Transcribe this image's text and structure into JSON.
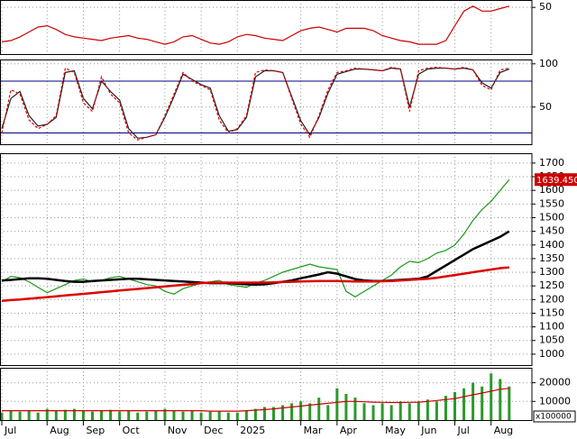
{
  "chart_data": [
    {
      "type": "line",
      "ylim": [
        12,
        56
      ],
      "yticks": [
        50
      ],
      "series": [
        {
          "color": "#cc0000",
          "values": [
            22,
            23,
            26,
            30,
            34,
            35,
            32,
            28,
            26,
            25,
            24,
            23,
            25,
            26,
            27,
            25,
            24,
            22,
            20,
            22,
            26,
            27,
            24,
            21,
            20,
            22,
            26,
            28,
            27,
            25,
            24,
            23,
            27,
            31,
            33,
            34,
            32,
            30,
            33,
            33,
            33,
            31,
            27,
            25,
            23,
            22,
            20,
            20,
            20,
            23,
            35,
            47,
            51,
            47,
            47,
            49,
            51
          ]
        }
      ]
    },
    {
      "type": "line",
      "ylim": [
        7,
        105
      ],
      "yticks": [
        50,
        100
      ],
      "levels": [
        20,
        80
      ],
      "level_color": "#000080",
      "series": [
        {
          "color": "#222222",
          "values": [
            25,
            60,
            68,
            40,
            28,
            30,
            38,
            90,
            92,
            60,
            48,
            80,
            68,
            58,
            25,
            14,
            15,
            18,
            38,
            62,
            88,
            82,
            76,
            72,
            40,
            22,
            24,
            38,
            85,
            92,
            92,
            90,
            62,
            34,
            18,
            38,
            66,
            88,
            91,
            94,
            94,
            93,
            92,
            95,
            94,
            50,
            88,
            94,
            95,
            95,
            94,
            95,
            93,
            78,
            72,
            90,
            94
          ]
        },
        {
          "color": "#dd0000",
          "dashed": true,
          "values": [
            20,
            70,
            65,
            35,
            25,
            30,
            40,
            95,
            90,
            55,
            45,
            85,
            65,
            55,
            20,
            12,
            15,
            18,
            40,
            65,
            90,
            80,
            75,
            70,
            35,
            20,
            25,
            40,
            90,
            93,
            92,
            90,
            60,
            30,
            15,
            40,
            70,
            90,
            92,
            95,
            94,
            93,
            92,
            96,
            94,
            45,
            92,
            95,
            96,
            95,
            94,
            96,
            93,
            75,
            70,
            93,
            95
          ]
        }
      ]
    },
    {
      "type": "line",
      "ylim": [
        960,
        1736
      ],
      "yticks": [
        1000,
        1050,
        1100,
        1150,
        1200,
        1250,
        1300,
        1350,
        1400,
        1450,
        1500,
        1550,
        1600,
        1650,
        1700
      ],
      "last_price": {
        "value": 1639.45,
        "label": "1639.450",
        "color": "#cc0000"
      },
      "series": [
        {
          "color": "#1a9a1a",
          "values": [
            1265,
            1285,
            1280,
            1265,
            1245,
            1225,
            1240,
            1255,
            1270,
            1275,
            1265,
            1270,
            1280,
            1285,
            1275,
            1265,
            1255,
            1250,
            1230,
            1220,
            1240,
            1250,
            1260,
            1265,
            1270,
            1255,
            1250,
            1245,
            1260,
            1270,
            1285,
            1300,
            1310,
            1320,
            1330,
            1320,
            1315,
            1310,
            1230,
            1210,
            1230,
            1250,
            1270,
            1290,
            1320,
            1340,
            1335,
            1350,
            1370,
            1380,
            1400,
            1440,
            1490,
            1530,
            1560,
            1600,
            1639.45
          ]
        },
        {
          "color": "#000000",
          "width": 2.5,
          "values": [
            1270,
            1272,
            1275,
            1278,
            1278,
            1276,
            1272,
            1268,
            1265,
            1265,
            1268,
            1270,
            1272,
            1274,
            1276,
            1276,
            1274,
            1272,
            1270,
            1268,
            1266,
            1264,
            1262,
            1260,
            1260,
            1260,
            1258,
            1256,
            1255,
            1256,
            1260,
            1265,
            1270,
            1278,
            1285,
            1292,
            1300,
            1295,
            1285,
            1275,
            1270,
            1268,
            1268,
            1270,
            1272,
            1274,
            1276,
            1285,
            1305,
            1325,
            1345,
            1365,
            1385,
            1400,
            1415,
            1430,
            1450
          ]
        },
        {
          "color": "#dd0000",
          "width": 2.5,
          "values": [
            1195,
            1198,
            1200,
            1203,
            1206,
            1209,
            1212,
            1215,
            1218,
            1221,
            1224,
            1227,
            1230,
            1233,
            1236,
            1239,
            1242,
            1245,
            1248,
            1251,
            1254,
            1257,
            1260,
            1262,
            1262,
            1262,
            1262,
            1262,
            1262,
            1262,
            1263,
            1264,
            1265,
            1266,
            1267,
            1268,
            1268,
            1268,
            1267,
            1266,
            1266,
            1266,
            1267,
            1268,
            1270,
            1272,
            1274,
            1276,
            1280,
            1285,
            1290,
            1295,
            1300,
            1305,
            1310,
            1315,
            1318
          ]
        }
      ]
    },
    {
      "type": "bar",
      "ylim": [
        0,
        28000
      ],
      "yticks": [
        10000,
        20000
      ],
      "unit_label": "x100000",
      "xticks": [
        {
          "value": 0,
          "label": "Jul"
        },
        {
          "value": 5,
          "label": "Aug"
        },
        {
          "value": 9,
          "label": "Sep"
        },
        {
          "value": 13,
          "label": "Oct"
        },
        {
          "value": 18,
          "label": "Nov"
        },
        {
          "value": 22,
          "label": "Dec"
        },
        {
          "value": 26,
          "label": "2025"
        },
        {
          "value": 33,
          "label": "Mar"
        },
        {
          "value": 37,
          "label": "Apr"
        },
        {
          "value": 42,
          "label": "May"
        },
        {
          "value": 46,
          "label": "Jun"
        },
        {
          "value": 50,
          "label": "Jul"
        },
        {
          "value": 54,
          "label": "Aug"
        }
      ],
      "series": [
        {
          "color": "#2a9a2a",
          "values": [
            4000,
            5000,
            4500,
            5000,
            4000,
            6000,
            5000,
            5500,
            6000,
            5000,
            4500,
            5000,
            5500,
            4500,
            5000,
            4000,
            4500,
            5000,
            6000,
            5000,
            4500,
            5000,
            4000,
            4500,
            5000,
            4000,
            4000,
            5000,
            6000,
            7000,
            7000,
            8000,
            9000,
            10000,
            9000,
            12000,
            8000,
            17000,
            14000,
            12000,
            9000,
            8000,
            9000,
            8000,
            10000,
            9000,
            10000,
            11000,
            10000,
            13000,
            15000,
            17000,
            20000,
            18000,
            25000,
            22000,
            18000
          ]
        },
        {
          "color": "#cc0000",
          "kind": "line",
          "values": [
            5000,
            5000,
            5000,
            5000,
            5000,
            5000,
            5000,
            5000,
            5000,
            5000,
            5000,
            5000,
            5000,
            5000,
            5000,
            5000,
            5000,
            5000,
            5000,
            5000,
            5000,
            5000,
            5000,
            4800,
            4800,
            4800,
            4800,
            5000,
            5300,
            5600,
            6000,
            6500,
            7000,
            7500,
            8000,
            8500,
            9000,
            9500,
            10000,
            10000,
            9800,
            9600,
            9500,
            9400,
            9400,
            9500,
            9600,
            10000,
            10500,
            11000,
            11500,
            12500,
            13500,
            14500,
            15500,
            16500,
            17000
          ]
        }
      ]
    }
  ]
}
